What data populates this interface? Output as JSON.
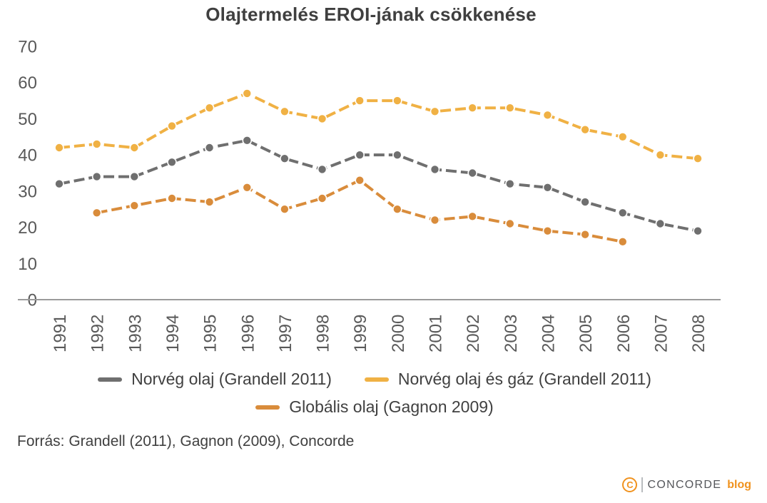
{
  "chart_data": {
    "type": "line",
    "title": "Olajtermelés EROI-jának csökkenése",
    "x": [
      "1991",
      "1992",
      "1993",
      "1994",
      "1995",
      "1996",
      "1997",
      "1998",
      "1999",
      "2000",
      "2001",
      "2002",
      "2003",
      "2004",
      "2005",
      "2006",
      "2007",
      "2008"
    ],
    "series": [
      {
        "name": "Norvég olaj (Grandell 2011)",
        "color": "#6f6f6f",
        "values": [
          32,
          34,
          34,
          38,
          42,
          44,
          39,
          36,
          40,
          40,
          36,
          35,
          32,
          31,
          27,
          24,
          21,
          19
        ]
      },
      {
        "name": "Norvég olaj és gáz (Grandell 2011)",
        "color": "#f0b144",
        "values": [
          42,
          43,
          42,
          48,
          53,
          57,
          52,
          50,
          55,
          55,
          52,
          53,
          53,
          51,
          47,
          45,
          40,
          39
        ]
      },
      {
        "name": "Globális olaj (Gagnon 2009)",
        "color": "#d98c3b",
        "values": [
          null,
          24,
          26,
          28,
          27,
          31,
          25,
          28,
          33,
          25,
          22,
          23,
          21,
          19,
          18,
          16,
          null,
          null
        ]
      }
    ],
    "ylim": [
      0,
      70
    ],
    "yticks": [
      0,
      10,
      20,
      30,
      40,
      50,
      60,
      70
    ],
    "grid": false,
    "legend_position": "bottom",
    "axis_line_color": "#9b9b9b",
    "tick_label_color": "#595959"
  },
  "source": {
    "text": "Forrás: Grandell (2011), Gagnon (2009), Concorde"
  },
  "logo": {
    "mark": "C",
    "name": "CONCORDE",
    "suffix": "blog",
    "orange": "#f0921e",
    "gray": "#55575b"
  }
}
